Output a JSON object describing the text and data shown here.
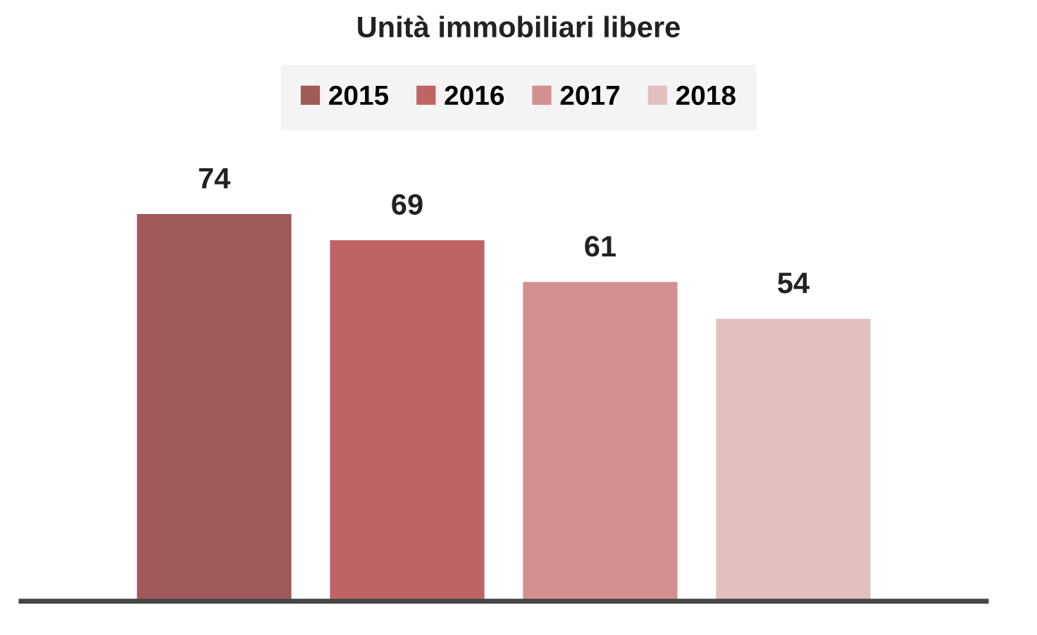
{
  "chart_data": {
    "type": "bar",
    "title": "Unità immobiliari libere",
    "categories": [
      null
    ],
    "series": [
      {
        "name": "2015",
        "color": "#a05a5a",
        "values": [
          74
        ]
      },
      {
        "name": "2016",
        "color": "#be6464",
        "values": [
          69
        ]
      },
      {
        "name": "2017",
        "color": "#d49090",
        "values": [
          61
        ]
      },
      {
        "name": "2018",
        "color": "#e3c0c0",
        "values": [
          54
        ]
      }
    ],
    "data_labels": true,
    "legend": "top",
    "grid": false,
    "tick_labels": false
  }
}
